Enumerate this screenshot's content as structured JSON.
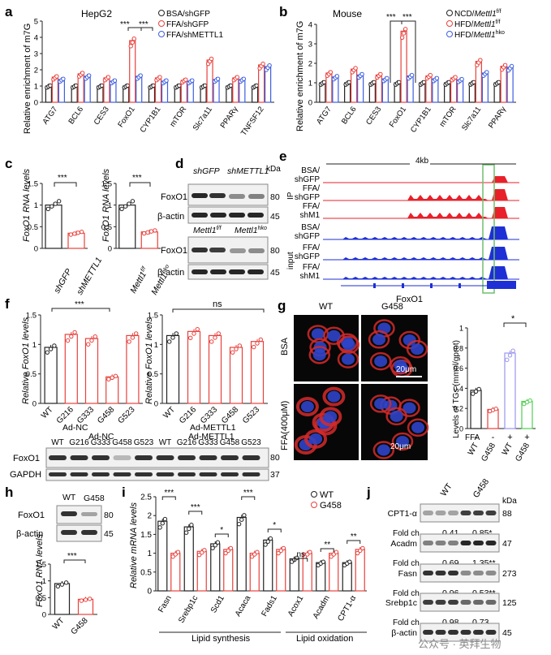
{
  "colors": {
    "black": "#222222",
    "red": "#e8413c",
    "blue": "#3d5ee0",
    "green": "#4fcf4f",
    "violet": "#9a97f0",
    "pink": "#f4a0a0",
    "ip_red": "#e8202a",
    "input_blue": "#1e2fd6",
    "box_green": "#6fbf6f",
    "dotted": "#5d5d5d"
  },
  "panels": {
    "a": "a",
    "b": "b",
    "c": "c",
    "d": "d",
    "e": "e",
    "f": "f",
    "g": "g",
    "h": "h",
    "i": "i",
    "j": "j"
  },
  "sig": {
    "s3": "***",
    "s2": "**",
    "s1": "*",
    "ns": "ns",
    "nsb": "ns"
  },
  "labels": {
    "rel_m7g": "Relative enrichment of m7G",
    "foxo1_rna": "FoxO1 RNA levels",
    "rel_foxo1": "Relative FoxO1 levels",
    "foxo1": "FoxO1",
    "bactin": "β-actin",
    "gapdh": "GAPDH",
    "kda": "kDa",
    "hepg2": "HepG2",
    "mouse": "Mouse",
    "ip": "IP",
    "input": "input",
    "fourkb": "4kb",
    "adnc": "Ad-NC",
    "admettl1": "Ad-METTL1",
    "wt": "WT",
    "g458": "G458",
    "bsa": "BSA",
    "ffa400": "FFA(400μM)",
    "scale": "20μm",
    "tg_axis": "Levels of TGs (mmol/gprot)",
    "ffa": "FFA",
    "minus": "-",
    "plus": "+",
    "mrna": "Relative mRNA levels",
    "lipid_synth": "Lipid synthesis",
    "lipid_ox": "Lipid oxidation",
    "shgfp": "shGFP",
    "shmettl1": "shMETTL1",
    "mettlff": "Mettl1",
    "mettlko": "Mettl1",
    "supff": "f/f",
    "supko": "hko",
    "cpt1": "CPT1-α",
    "acadm": "Acadm",
    "fasn": "Fasn",
    "srebp1c": "Srebp1c",
    "foldch": "Fold ch.",
    "watermark": "公众号 · 英拜生物"
  },
  "legend_a": [
    "BSA/shGFP",
    "FFA/shGFP",
    "FFA/shMETTL1"
  ],
  "legend_b": [
    "NCD/",
    "HFD/",
    "HFD/"
  ],
  "legend_i": [
    "WT",
    "G458"
  ],
  "tracks_e": [
    "BSA/ shGFP",
    "FFA/ shGFP",
    "FFA/ shM1",
    "BSA/ shGFP",
    "FFA/ shGFP",
    "FFA/ shM1"
  ],
  "lanes_f": [
    "WT",
    "G216",
    "G333",
    "G458",
    "G523",
    "WT",
    "G216",
    "G333",
    "G458",
    "G523"
  ],
  "fold_j": [
    [
      "0.41",
      "0.85*"
    ],
    [
      "0.69",
      "1.35**"
    ],
    [
      "0.96",
      "0.53**"
    ],
    [
      "0.98",
      "0.73"
    ]
  ],
  "kda_j": [
    "88",
    "47",
    "273",
    "125",
    "45"
  ],
  "kda_d": [
    "80",
    "45",
    "80",
    "45"
  ],
  "kda_f": [
    "80",
    "37"
  ],
  "kda_h": [
    "80",
    "45"
  ],
  "chart_data": [
    {
      "type": "bar",
      "panel": "a",
      "ylabel": "Relative enrichment of m7G",
      "ylim": [
        0,
        5
      ],
      "yticks": [
        0,
        1,
        2,
        3,
        4,
        5
      ],
      "categories": [
        "ATG7",
        "BCL6",
        "CES3",
        "FoxO1",
        "CYP1B1",
        "mTOR",
        "Slc7a11",
        "PPARγ",
        "TNFSF12"
      ],
      "series": [
        {
          "name": "BSA/shGFP",
          "values": [
            1,
            1,
            1,
            1,
            1,
            1,
            1,
            1,
            1
          ]
        },
        {
          "name": "FFA/shGFP",
          "values": [
            1.55,
            1.75,
            1.5,
            3.8,
            1.5,
            1.35,
            2.6,
            1.5,
            2.3
          ]
        },
        {
          "name": "FFA/shMETTL1",
          "values": [
            1.4,
            1.6,
            1.3,
            1.6,
            1.3,
            1.3,
            1.4,
            1.4,
            2.2
          ]
        }
      ]
    },
    {
      "type": "bar",
      "panel": "b",
      "ylabel": "Relative enrichment of m7G",
      "ylim": [
        0,
        4
      ],
      "yticks": [
        0,
        1,
        2,
        3,
        4
      ],
      "categories": [
        "ATG7",
        "BCL6",
        "CES3",
        "FoxO1",
        "CYP1B1",
        "mTOR",
        "Slc7a11",
        "PPARγ"
      ],
      "series": [
        {
          "name": "NCD/Mettl1 f/f",
          "values": [
            1,
            1,
            1,
            1,
            1,
            1,
            1,
            1
          ]
        },
        {
          "name": "HFD/Mettl1 f/f",
          "values": [
            1.5,
            1.7,
            1.4,
            3.65,
            1.35,
            1.25,
            2.1,
            1.85
          ]
        },
        {
          "name": "HFD/Mettl1 hko",
          "values": [
            1.3,
            1.4,
            1.2,
            1.35,
            1.2,
            1.15,
            1.5,
            1.8
          ]
        }
      ]
    },
    {
      "type": "bar",
      "panel": "c-left",
      "ylim": [
        0,
        1.5
      ],
      "yticks": [
        0,
        0.5,
        1,
        1.5
      ],
      "categories": [
        "shGFP",
        "shMETTL1"
      ],
      "values": [
        1.0,
        0.35
      ]
    },
    {
      "type": "bar",
      "panel": "c-right",
      "ylim": [
        0,
        1.5
      ],
      "yticks": [
        0,
        0.5,
        1,
        1.5
      ],
      "categories": [
        "Mettl1 f/f",
        "Mettl1 hko"
      ],
      "values": [
        1.0,
        0.38
      ]
    },
    {
      "type": "bar",
      "panel": "f-left",
      "ylim": [
        0,
        1.5
      ],
      "yticks": [
        0,
        0.5,
        1,
        1.5
      ],
      "categories": [
        "WT",
        "G216",
        "G333",
        "G458",
        "G523"
      ],
      "values": [
        0.95,
        1.17,
        1.1,
        0.45,
        1.15
      ]
    },
    {
      "type": "bar",
      "panel": "f-right",
      "ylim": [
        0,
        1.5
      ],
      "yticks": [
        0,
        0.5,
        1,
        1.5
      ],
      "categories": [
        "WT",
        "G216",
        "G333",
        "G458",
        "G523"
      ],
      "values": [
        1.15,
        1.22,
        1.15,
        0.95,
        1.05
      ]
    },
    {
      "type": "bar",
      "panel": "g",
      "ylabel": "Levels of TGs (mmol/gprot)",
      "ylim": [
        0,
        1.0
      ],
      "yticks": [
        0,
        0.2,
        0.4,
        0.6,
        0.8,
        1.0
      ],
      "categories": [
        "WT -",
        "G458 -",
        "WT +",
        "G458 +"
      ],
      "values": [
        0.38,
        0.19,
        0.75,
        0.27
      ]
    },
    {
      "type": "bar",
      "panel": "h",
      "ylim": [
        0,
        1.5
      ],
      "yticks": [
        0,
        0.5,
        1,
        1.5
      ],
      "categories": [
        "WT",
        "G458"
      ],
      "values": [
        0.92,
        0.45
      ]
    },
    {
      "type": "bar",
      "panel": "i",
      "ylabel": "Relative mRNA levels",
      "ylim": [
        0,
        2.5
      ],
      "yticks": [
        0,
        0.5,
        1,
        1.5,
        2,
        2.5
      ],
      "categories": [
        "Fasn",
        "Srebp1c",
        "Scd1",
        "Acaca",
        "Fads1",
        "Acox1",
        "Acadm",
        "CPT1-α"
      ],
      "series": [
        {
          "name": "WT",
          "values": [
            1.85,
            1.7,
            1.25,
            1.95,
            1.35,
            0.85,
            0.75,
            0.75
          ]
        },
        {
          "name": "G458",
          "values": [
            1.0,
            1.05,
            1.1,
            1.0,
            1.1,
            1.0,
            1.0,
            1.1
          ]
        }
      ]
    }
  ]
}
